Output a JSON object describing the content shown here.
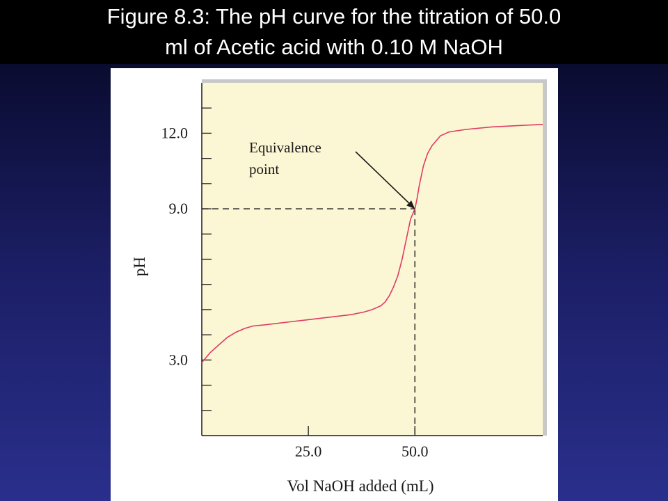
{
  "slide": {
    "title_line1": "Figure 8.3:  The pH curve for the titration of 50.0",
    "title_line2": "ml of Acetic acid with 0.10 M NaOH"
  },
  "colors": {
    "plot_background": "#fbf6d3",
    "curve": "#e03a64",
    "axes": "#1a1a1a",
    "frame": "#c8c8c8",
    "slide_title_bar": "#000000"
  },
  "chart_data": {
    "type": "line",
    "xlabel": "Vol NaOH added (mL)",
    "ylabel": "pH",
    "xlim": [
      0,
      80
    ],
    "ylim": [
      0,
      14
    ],
    "x_ticks": [
      25.0,
      50.0
    ],
    "x_tick_labels": [
      "25.0",
      "50.0"
    ],
    "y_ticks": [
      3.0,
      9.0,
      12.0
    ],
    "y_tick_labels": [
      "3.0",
      "9.0",
      "12.0"
    ],
    "y_minor_tick_step": 1,
    "grid": false,
    "series": [
      {
        "x": [
          0,
          2,
          4,
          6,
          8,
          10,
          12,
          15,
          20,
          25,
          30,
          35,
          38,
          40,
          42,
          43,
          44,
          45,
          46,
          47,
          48,
          49,
          49.5,
          50,
          50.5,
          51,
          52,
          53,
          54,
          56,
          58,
          62,
          68,
          74,
          80
        ],
        "y": [
          2.9,
          3.3,
          3.6,
          3.9,
          4.1,
          4.25,
          4.35,
          4.4,
          4.5,
          4.6,
          4.7,
          4.8,
          4.9,
          5.0,
          5.15,
          5.3,
          5.55,
          5.9,
          6.35,
          7.0,
          7.8,
          8.6,
          8.8,
          9.0,
          9.4,
          9.9,
          10.7,
          11.2,
          11.5,
          11.9,
          12.05,
          12.15,
          12.25,
          12.3,
          12.35
        ]
      }
    ],
    "annotations": [
      {
        "text_line1": "Equivalence",
        "text_line2": "point",
        "x": 50.0,
        "y": 9.0
      }
    ]
  }
}
